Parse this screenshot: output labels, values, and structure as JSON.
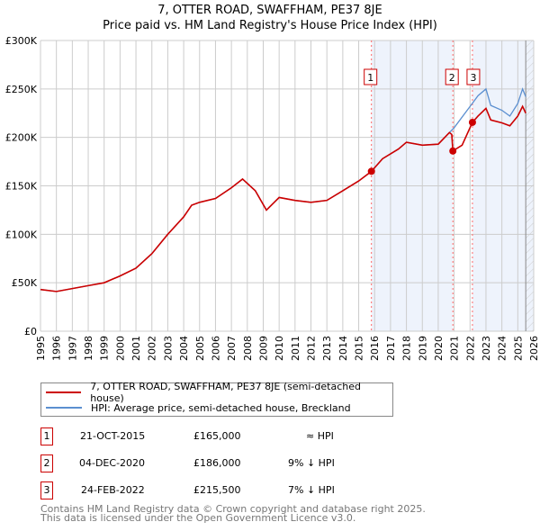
{
  "title": "7, OTTER ROAD, SWAFFHAM, PE37 8JE",
  "subtitle": "Price paid vs. HM Land Registry's House Price Index (HPI)",
  "chart_data": {
    "type": "line",
    "xlim": [
      1995,
      2026
    ],
    "ylim": [
      0,
      300000
    ],
    "x_ticks": [
      "1995",
      "1996",
      "1997",
      "1998",
      "1999",
      "2000",
      "2001",
      "2002",
      "2003",
      "2004",
      "2005",
      "2006",
      "2007",
      "2008",
      "2009",
      "2010",
      "2011",
      "2012",
      "2013",
      "2014",
      "2015",
      "2016",
      "2017",
      "2018",
      "2019",
      "2020",
      "2021",
      "2022",
      "2023",
      "2024",
      "2025",
      "2026"
    ],
    "y_ticks": [
      {
        "v": 0,
        "label": "£0"
      },
      {
        "v": 50000,
        "label": "£50K"
      },
      {
        "v": 100000,
        "label": "£100K"
      },
      {
        "v": 150000,
        "label": "£150K"
      },
      {
        "v": 200000,
        "label": "£200K"
      },
      {
        "v": 250000,
        "label": "£250K"
      },
      {
        "v": 300000,
        "label": "£300K"
      }
    ],
    "series": [
      {
        "name": "HPI: Average price, semi-detached house, Breckland",
        "color": "#5b8fd0",
        "points": [
          [
            1995,
            43000
          ],
          [
            1996,
            41000
          ],
          [
            1997,
            44000
          ],
          [
            1998,
            47000
          ],
          [
            1999,
            50000
          ],
          [
            2000,
            57000
          ],
          [
            2001,
            65000
          ],
          [
            2002,
            80000
          ],
          [
            2003,
            100000
          ],
          [
            2004,
            118000
          ],
          [
            2004.5,
            130000
          ],
          [
            2005,
            133000
          ],
          [
            2006,
            137000
          ],
          [
            2007,
            148000
          ],
          [
            2007.7,
            157000
          ],
          [
            2008.5,
            145000
          ],
          [
            2009.2,
            125000
          ],
          [
            2010,
            138000
          ],
          [
            2011,
            135000
          ],
          [
            2012,
            133000
          ],
          [
            2013,
            135000
          ],
          [
            2014,
            145000
          ],
          [
            2015,
            155000
          ],
          [
            2015.8,
            165000
          ],
          [
            2016.5,
            178000
          ],
          [
            2017.5,
            188000
          ],
          [
            2018,
            195000
          ],
          [
            2019,
            192000
          ],
          [
            2020,
            193000
          ],
          [
            2020.7,
            205000
          ],
          [
            2021,
            210000
          ],
          [
            2022,
            232000
          ],
          [
            2022.5,
            243000
          ],
          [
            2023,
            250000
          ],
          [
            2023.3,
            233000
          ],
          [
            2024,
            228000
          ],
          [
            2024.5,
            222000
          ],
          [
            2025,
            235000
          ],
          [
            2025.3,
            250000
          ],
          [
            2025.5,
            242000
          ]
        ]
      },
      {
        "name": "7, OTTER ROAD, SWAFFHAM, PE37 8JE (semi-detached house)",
        "color": "#cc0000",
        "points": [
          [
            1995,
            43000
          ],
          [
            1996,
            41000
          ],
          [
            1997,
            44000
          ],
          [
            1998,
            47000
          ],
          [
            1999,
            50000
          ],
          [
            2000,
            57000
          ],
          [
            2001,
            65000
          ],
          [
            2002,
            80000
          ],
          [
            2003,
            100000
          ],
          [
            2004,
            118000
          ],
          [
            2004.5,
            130000
          ],
          [
            2005,
            133000
          ],
          [
            2006,
            137000
          ],
          [
            2007,
            148000
          ],
          [
            2007.7,
            157000
          ],
          [
            2008.5,
            145000
          ],
          [
            2009.2,
            125000
          ],
          [
            2010,
            138000
          ],
          [
            2011,
            135000
          ],
          [
            2012,
            133000
          ],
          [
            2013,
            135000
          ],
          [
            2014,
            145000
          ],
          [
            2015,
            155000
          ],
          [
            2015.8,
            165000
          ],
          [
            2016.5,
            178000
          ],
          [
            2017.5,
            188000
          ],
          [
            2018,
            195000
          ],
          [
            2019,
            192000
          ],
          [
            2020,
            193000
          ],
          [
            2020.7,
            205000
          ],
          [
            2020.85,
            203000
          ],
          [
            2020.92,
            186000
          ],
          [
            2021.5,
            192000
          ],
          [
            2022.15,
            215500
          ],
          [
            2022.5,
            222000
          ],
          [
            2023,
            230000
          ],
          [
            2023.3,
            218000
          ],
          [
            2024,
            215000
          ],
          [
            2024.5,
            212000
          ],
          [
            2025,
            222000
          ],
          [
            2025.3,
            232000
          ],
          [
            2025.5,
            225000
          ]
        ]
      }
    ],
    "sales": [
      {
        "n": "1",
        "x": 2015.8,
        "y": 165000
      },
      {
        "n": "2",
        "x": 2020.92,
        "y": 186000
      },
      {
        "n": "3",
        "x": 2022.15,
        "y": 215500
      }
    ],
    "shaded": [
      [
        2015.8,
        2020.92
      ],
      [
        2022.15,
        2026
      ]
    ],
    "forecast_from": 2025.5
  },
  "legend": [
    "7, OTTER ROAD, SWAFFHAM, PE37 8JE (semi-detached house)",
    "HPI: Average price, semi-detached house, Breckland"
  ],
  "transactions": [
    {
      "n": "1",
      "date": "21-OCT-2015",
      "price": "£165,000",
      "hpi": "≈ HPI"
    },
    {
      "n": "2",
      "date": "04-DEC-2020",
      "price": "£186,000",
      "hpi": "9% ↓ HPI"
    },
    {
      "n": "3",
      "date": "24-FEB-2022",
      "price": "£215,500",
      "hpi": "7% ↓ HPI"
    }
  ],
  "footer": [
    "Contains HM Land Registry data © Crown copyright and database right 2025.",
    "This data is licensed under the Open Government Licence v3.0."
  ]
}
